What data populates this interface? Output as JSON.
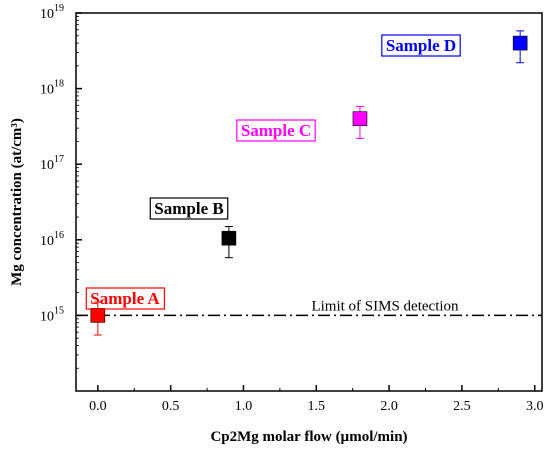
{
  "chart_data": {
    "type": "scatter",
    "title": "",
    "xlabel": "Cp2Mg molar flow (µmol/min)",
    "ylabel": "Mg concentration (at/cm³)",
    "x_scale": "linear",
    "y_scale": "log",
    "xlim": [
      -0.15,
      3.05
    ],
    "ylim": [
      100000000000000.0,
      1e+19
    ],
    "x_ticks": [
      "0.0",
      "0.5",
      "1.0",
      "1.5",
      "2.0",
      "2.5",
      "3.0"
    ],
    "y_ticks": [
      {
        "base": "10",
        "exp": "15",
        "value": 1000000000000000.0
      },
      {
        "base": "10",
        "exp": "16",
        "value": 1e+16
      },
      {
        "base": "10",
        "exp": "17",
        "value": 1e+17
      },
      {
        "base": "10",
        "exp": "18",
        "value": 1e+18
      },
      {
        "base": "10",
        "exp": "19",
        "value": 1e+19
      }
    ],
    "grid": false,
    "points": [
      {
        "label": "Sample A",
        "x": 0.0,
        "y": 1000000000000000.0,
        "y_err_low": 550000000000000.0,
        "y_err_high": 1500000000000000.0,
        "color": "#ff0000"
      },
      {
        "label": "Sample B",
        "x": 0.9,
        "y": 1.05e+16,
        "y_err_low": 5800000000000000.0,
        "y_err_high": 1.5e+16,
        "color": "#000000"
      },
      {
        "label": "Sample C",
        "x": 1.8,
        "y": 4e+17,
        "y_err_low": 2.2e+17,
        "y_err_high": 5.8e+17,
        "color": "#ff00ff"
      },
      {
        "label": "Sample D",
        "x": 2.9,
        "y": 4e+18,
        "y_err_low": 2.2e+18,
        "y_err_high": 5.8e+18,
        "color": "#0000ff"
      }
    ],
    "reference_line": {
      "y": 1000000000000000.0,
      "label": "Limit of SIMS detection",
      "style": "dash-dot"
    }
  }
}
